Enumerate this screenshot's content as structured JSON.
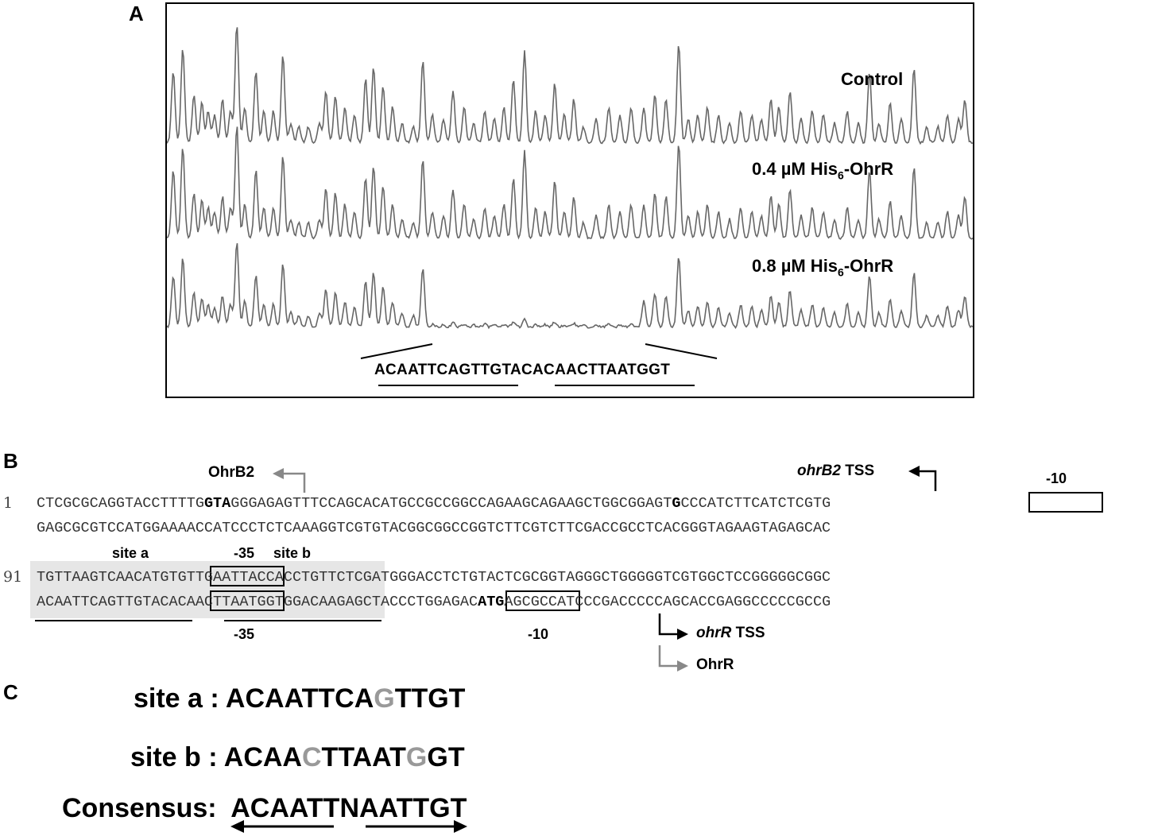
{
  "panels": {
    "a": "A",
    "b": "B",
    "c": "C"
  },
  "panel_a": {
    "traces": [
      {
        "label": "Control"
      },
      {
        "label_main": "0.4 µM His",
        "label_sub": "6",
        "label_tail": "-OhrR"
      },
      {
        "label_main": "0.8 µM His",
        "label_sub": "6",
        "label_tail": "-OhrR"
      }
    ],
    "protected_sequence": "ACAATTCAGTTGTACACAACTTAATGGT"
  },
  "panel_b": {
    "line1_number": "1",
    "line1_top": {
      "pre": "CTCGCGCAGGTACCTTTTG",
      "bold1": "GTA",
      "mid": "GGGAGAGTTTCCAGCACATGCCGCCGGCCAGAAGCAGAAGCTGGCGGAGT",
      "bold2": "G",
      "post": "CCCATCTTCATCTCGTG"
    },
    "line1_bottom": "GAGCGCGTCCATGGAAAACCATCCCTCTCAAAGGTCGTGTACGGCGGCCGGTCTTCGTCTTCGACCGCCTCACGGGTAGAAGTAGAGCAC",
    "line2_number": "91",
    "line2_top": "TGTTAAGTCAACATGTGTTGAATTACCACCTGTTCTCGATGGGACCTCTGTACTCGCGGTAGGGCTGGGGGTCGTGGCTCCGGGGGCGGC",
    "line2_bottom": {
      "pre": "ACAATTCAGTTGTACACAACTTAATGGTGGACAAGAGCTACCCTGGAGAC",
      "bold": "ATG",
      "post": "AGCGCCATCCCGACCCCCAGCACCGAGGCCCCCGCCG"
    },
    "labels": {
      "ohrb2": "OhrB2",
      "ohrb2_tss_italic": "ohrB2",
      "tss": "TSS",
      "minus10_top": "-10",
      "site_a": "site a",
      "site_b": "site b",
      "minus35_top": "-35",
      "minus35_bottom": "-35",
      "minus10_bottom": "-10",
      "ohrr_tss_italic": "ohrR",
      "ohrr": "OhrR"
    }
  },
  "panel_c": {
    "rows": [
      {
        "label": "site a : ",
        "parts": [
          [
            "ACAATTCA",
            "black"
          ],
          [
            "G",
            "gray"
          ],
          [
            "TTGT",
            "black"
          ]
        ]
      },
      {
        "label": "site b : ",
        "parts": [
          [
            "ACAA",
            "black"
          ],
          [
            "C",
            "gray"
          ],
          [
            "TTAAT",
            "black"
          ],
          [
            "G",
            "gray"
          ],
          [
            "GT",
            "black"
          ]
        ]
      },
      {
        "label": "Consensus:  ",
        "parts": [
          [
            "ACAATTNAATTGT",
            "black"
          ]
        ]
      }
    ]
  }
}
